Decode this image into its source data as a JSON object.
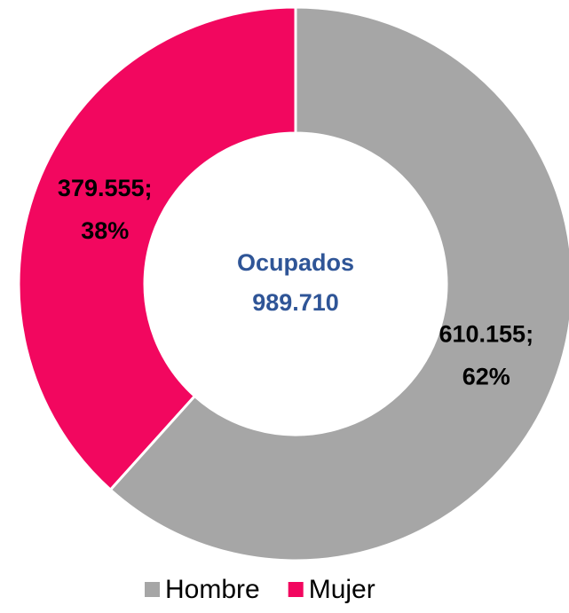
{
  "chart_data": {
    "type": "donut",
    "categories": [
      "Hombre",
      "Mujer"
    ],
    "series": [
      {
        "name": "Ocupados",
        "values": [
          610155,
          379555
        ],
        "value_labels": [
          [
            "610.155;",
            "62%"
          ],
          [
            "379.555;",
            "38%"
          ]
        ]
      }
    ],
    "colors": [
      "#a6a6a6",
      "#f2075f"
    ],
    "center_text": [
      "Ocupados",
      "989.710"
    ],
    "legend": "bottom"
  }
}
